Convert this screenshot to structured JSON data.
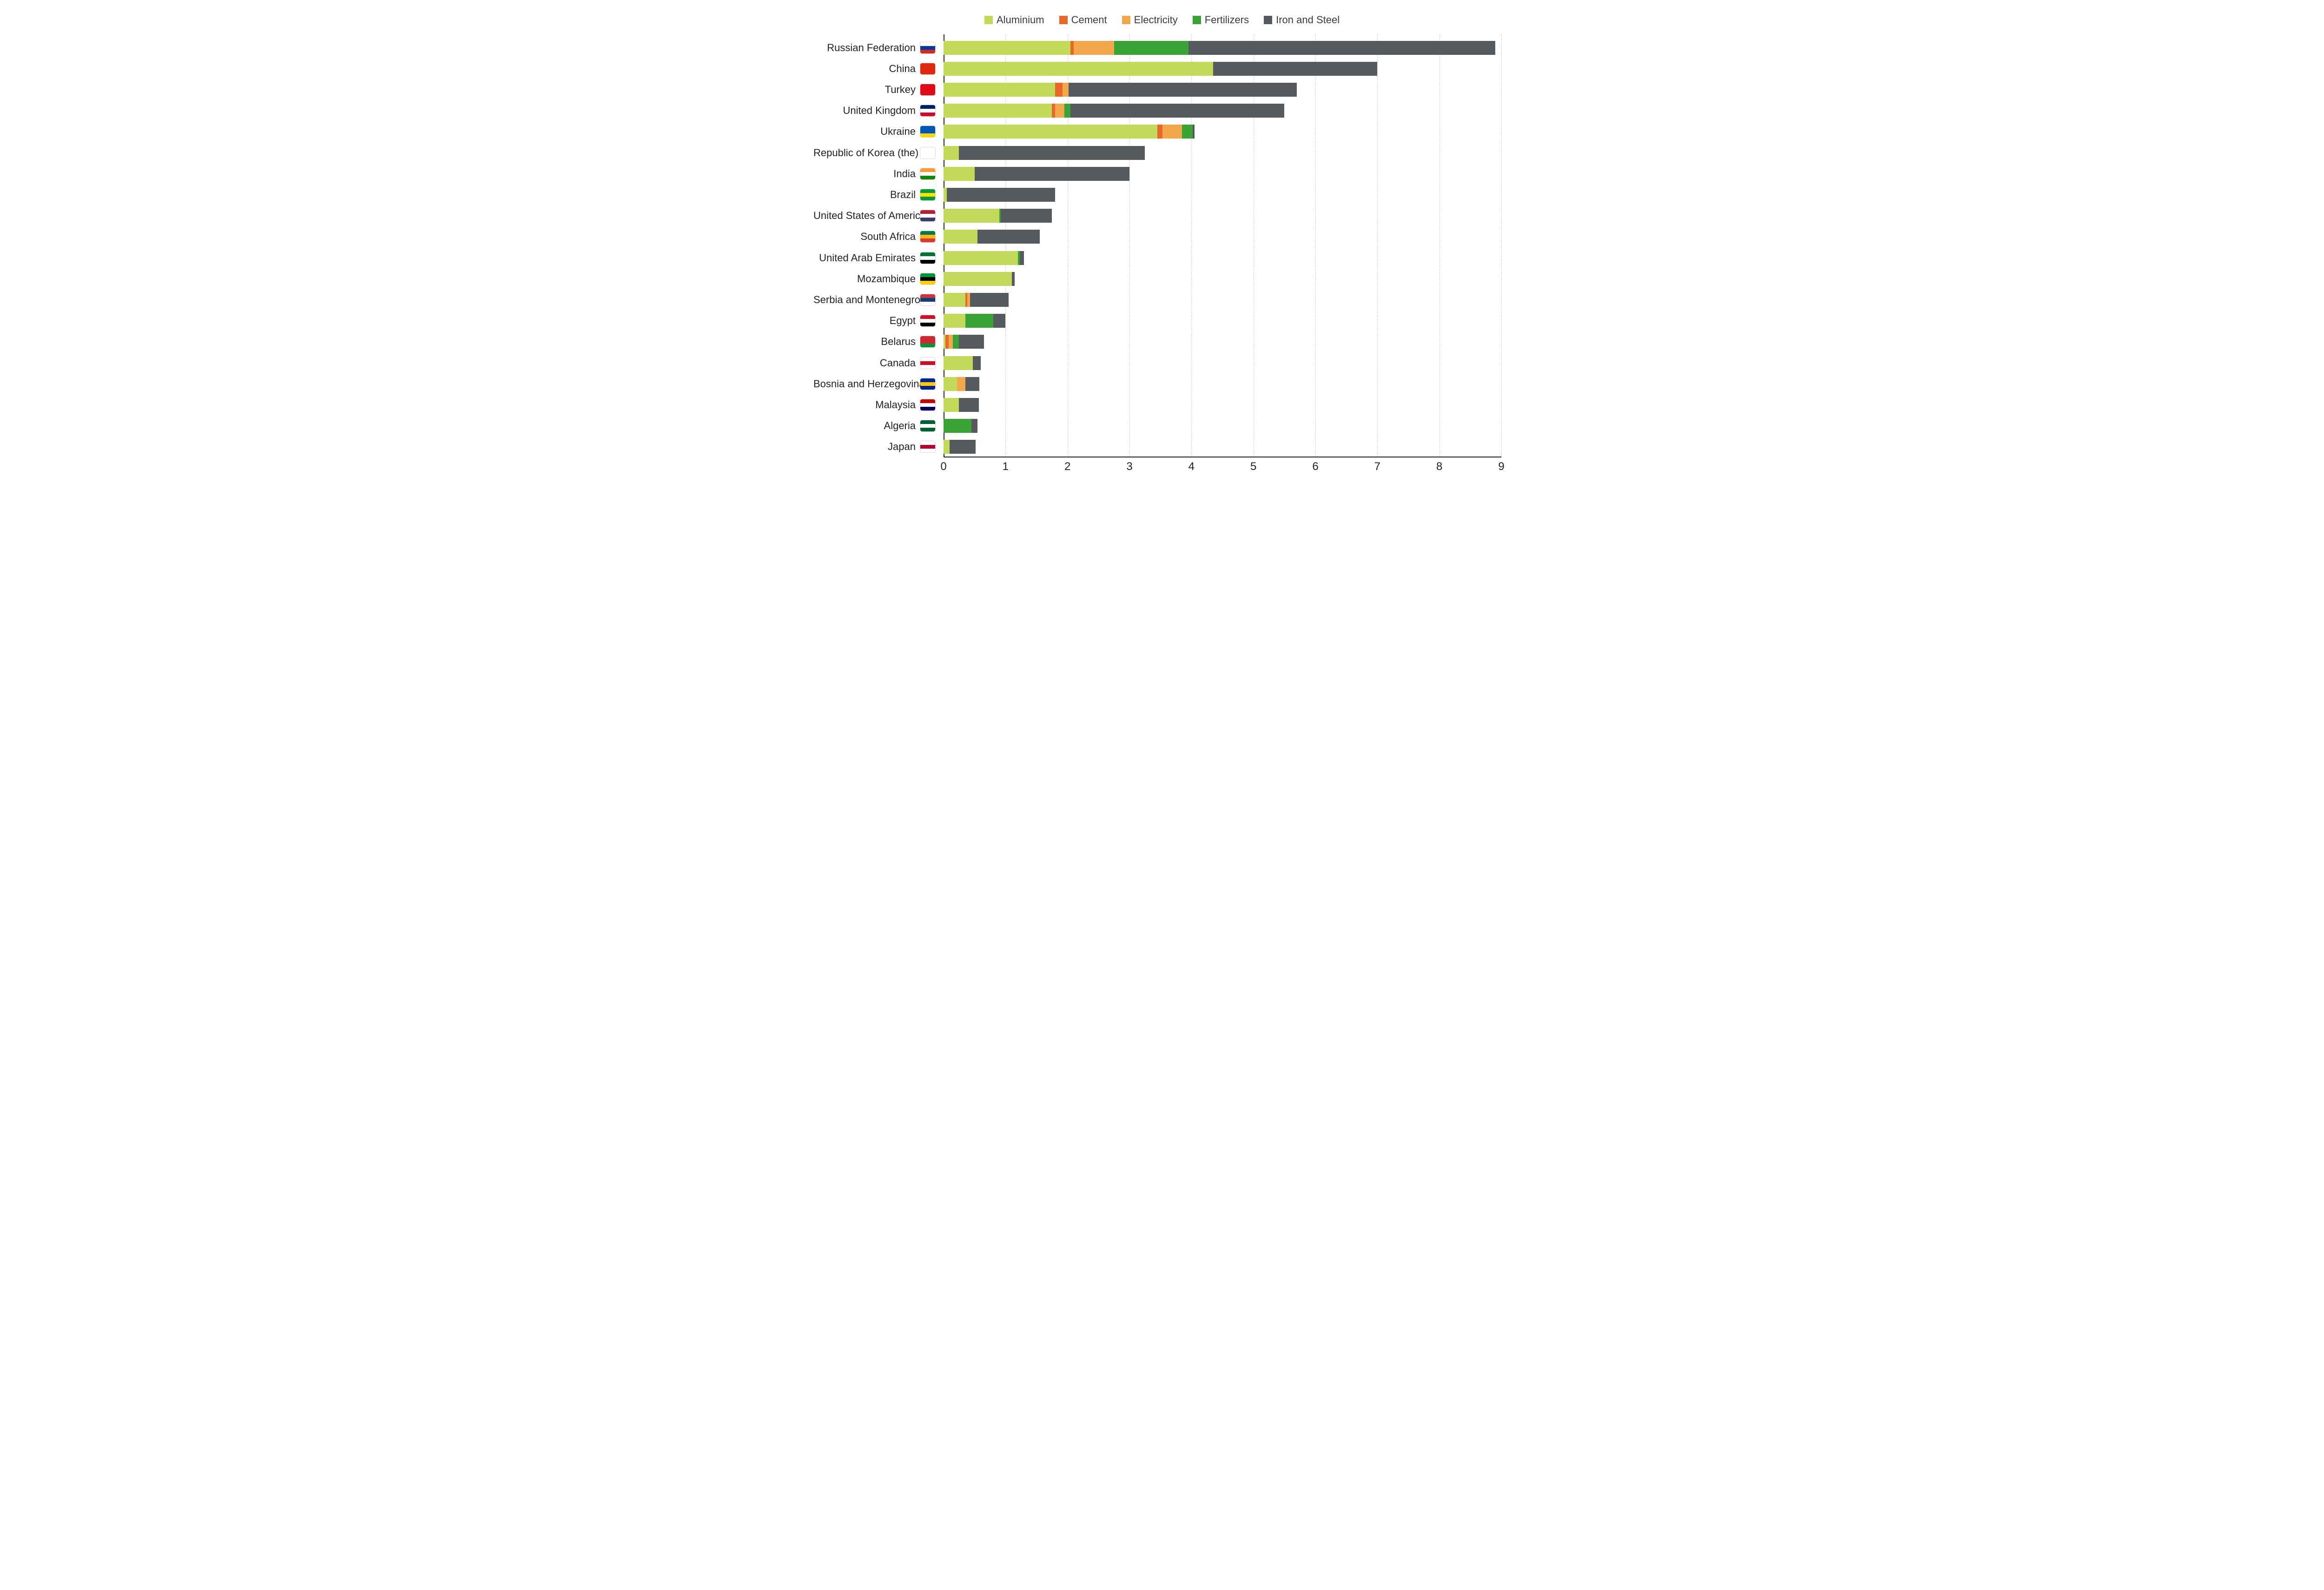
{
  "chart": {
    "type": "stacked-bar-horizontal",
    "background_color": "#ffffff",
    "grid_color": "#d0d0d0",
    "axis_color": "#222222",
    "text_color": "#222222",
    "label_fontsize": 22,
    "tick_fontsize": 24,
    "legend_fontsize": 22,
    "xlim": [
      0,
      9
    ],
    "xtick_step": 1,
    "xticks": [
      0,
      1,
      2,
      3,
      4,
      5,
      6,
      7,
      8,
      9
    ],
    "series": [
      {
        "key": "aluminium",
        "label": "Aluminium",
        "color": "#c3d95a"
      },
      {
        "key": "cement",
        "label": "Cement",
        "color": "#e8682a"
      },
      {
        "key": "electricity",
        "label": "Electricity",
        "color": "#f2a74a"
      },
      {
        "key": "fertilizers",
        "label": "Fertilizers",
        "color": "#39a335"
      },
      {
        "key": "iron_steel",
        "label": "Iron and Steel",
        "color": "#555a5e"
      }
    ],
    "rows": [
      {
        "label": "Russian Federation",
        "flag": "ru",
        "values": {
          "aluminium": 2.05,
          "cement": 0.05,
          "electricity": 0.65,
          "fertilizers": 1.2,
          "iron_steel": 4.95
        }
      },
      {
        "label": "China",
        "flag": "cn",
        "values": {
          "aluminium": 4.35,
          "cement": 0.0,
          "electricity": 0.0,
          "fertilizers": 0.0,
          "iron_steel": 2.65
        }
      },
      {
        "label": "Turkey",
        "flag": "tr",
        "values": {
          "aluminium": 1.8,
          "cement": 0.12,
          "electricity": 0.1,
          "fertilizers": 0.0,
          "iron_steel": 3.68
        }
      },
      {
        "label": "United Kingdom",
        "flag": "gb",
        "values": {
          "aluminium": 1.75,
          "cement": 0.05,
          "electricity": 0.15,
          "fertilizers": 0.1,
          "iron_steel": 3.45
        }
      },
      {
        "label": "Ukraine",
        "flag": "ua",
        "values": {
          "aluminium": 3.45,
          "cement": 0.08,
          "electricity": 0.32,
          "fertilizers": 0.17,
          "iron_steel": 0.03
        }
      },
      {
        "label": "Republic of Korea (the)",
        "flag": "kr",
        "values": {
          "aluminium": 0.25,
          "cement": 0.0,
          "electricity": 0.0,
          "fertilizers": 0.0,
          "iron_steel": 3.0
        }
      },
      {
        "label": "India",
        "flag": "in",
        "values": {
          "aluminium": 0.5,
          "cement": 0.0,
          "electricity": 0.0,
          "fertilizers": 0.0,
          "iron_steel": 2.5
        }
      },
      {
        "label": "Brazil",
        "flag": "br",
        "values": {
          "aluminium": 0.05,
          "cement": 0.0,
          "electricity": 0.0,
          "fertilizers": 0.0,
          "iron_steel": 1.75
        }
      },
      {
        "label": "United States of America",
        "flag": "us",
        "values": {
          "aluminium": 0.9,
          "cement": 0.0,
          "electricity": 0.0,
          "fertilizers": 0.02,
          "iron_steel": 0.83
        }
      },
      {
        "label": "South Africa",
        "flag": "za",
        "values": {
          "aluminium": 0.55,
          "cement": 0.0,
          "electricity": 0.0,
          "fertilizers": 0.0,
          "iron_steel": 1.0
        }
      },
      {
        "label": "United Arab Emirates",
        "flag": "ae",
        "values": {
          "aluminium": 1.2,
          "cement": 0.0,
          "electricity": 0.0,
          "fertilizers": 0.03,
          "iron_steel": 0.07
        }
      },
      {
        "label": "Mozambique",
        "flag": "mz",
        "values": {
          "aluminium": 1.1,
          "cement": 0.0,
          "electricity": 0.0,
          "fertilizers": 0.0,
          "iron_steel": 0.05
        }
      },
      {
        "label": "Serbia and Montenegro",
        "flag": "rs",
        "values": {
          "aluminium": 0.35,
          "cement": 0.03,
          "electricity": 0.05,
          "fertilizers": 0.0,
          "iron_steel": 0.62
        }
      },
      {
        "label": "Egypt",
        "flag": "eg",
        "values": {
          "aluminium": 0.35,
          "cement": 0.0,
          "electricity": 0.0,
          "fertilizers": 0.45,
          "iron_steel": 0.2
        }
      },
      {
        "label": "Belarus",
        "flag": "by",
        "values": {
          "aluminium": 0.03,
          "cement": 0.05,
          "electricity": 0.07,
          "fertilizers": 0.1,
          "iron_steel": 0.4
        }
      },
      {
        "label": "Canada",
        "flag": "ca",
        "values": {
          "aluminium": 0.47,
          "cement": 0.0,
          "electricity": 0.0,
          "fertilizers": 0.0,
          "iron_steel": 0.13
        }
      },
      {
        "label": "Bosnia and Herzegovina",
        "flag": "ba",
        "values": {
          "aluminium": 0.22,
          "cement": 0.0,
          "electricity": 0.13,
          "fertilizers": 0.0,
          "iron_steel": 0.23
        }
      },
      {
        "label": "Malaysia",
        "flag": "my",
        "values": {
          "aluminium": 0.25,
          "cement": 0.0,
          "electricity": 0.0,
          "fertilizers": 0.0,
          "iron_steel": 0.32
        }
      },
      {
        "label": "Algeria",
        "flag": "dz",
        "values": {
          "aluminium": 0.0,
          "cement": 0.0,
          "electricity": 0.0,
          "fertilizers": 0.45,
          "iron_steel": 0.1
        }
      },
      {
        "label": "Japan",
        "flag": "jp",
        "values": {
          "aluminium": 0.1,
          "cement": 0.0,
          "electricity": 0.0,
          "fertilizers": 0.0,
          "iron_steel": 0.42
        }
      }
    ],
    "flags": {
      "ru": [
        "#ffffff",
        "#0039a6",
        "#d52b1e"
      ],
      "cn": [
        "#de2910",
        "#de2910",
        "#de2910"
      ],
      "tr": [
        "#e30a17",
        "#e30a17",
        "#e30a17"
      ],
      "gb": [
        "#012169",
        "#ffffff",
        "#c8102e"
      ],
      "ua": [
        "#0057b7",
        "#0057b7",
        "#ffd700"
      ],
      "kr": [
        "#ffffff",
        "#ffffff",
        "#ffffff"
      ],
      "in": [
        "#ff9933",
        "#ffffff",
        "#138808"
      ],
      "br": [
        "#009b3a",
        "#fedf00",
        "#009b3a"
      ],
      "us": [
        "#b22234",
        "#ffffff",
        "#3c3b6e"
      ],
      "za": [
        "#007a4d",
        "#ffb612",
        "#de3831"
      ],
      "ae": [
        "#00732f",
        "#ffffff",
        "#000000"
      ],
      "mz": [
        "#009639",
        "#000000",
        "#ffcd00"
      ],
      "rs": [
        "#c6363c",
        "#0c4076",
        "#ffffff"
      ],
      "eg": [
        "#ce1126",
        "#ffffff",
        "#000000"
      ],
      "by": [
        "#d22730",
        "#d22730",
        "#009739"
      ],
      "ca": [
        "#ffffff",
        "#d80621",
        "#ffffff"
      ],
      "ba": [
        "#002395",
        "#fecb00",
        "#002395"
      ],
      "my": [
        "#cc0001",
        "#ffffff",
        "#010066"
      ],
      "dz": [
        "#006233",
        "#ffffff",
        "#006233"
      ],
      "jp": [
        "#ffffff",
        "#bc002d",
        "#ffffff"
      ]
    }
  }
}
